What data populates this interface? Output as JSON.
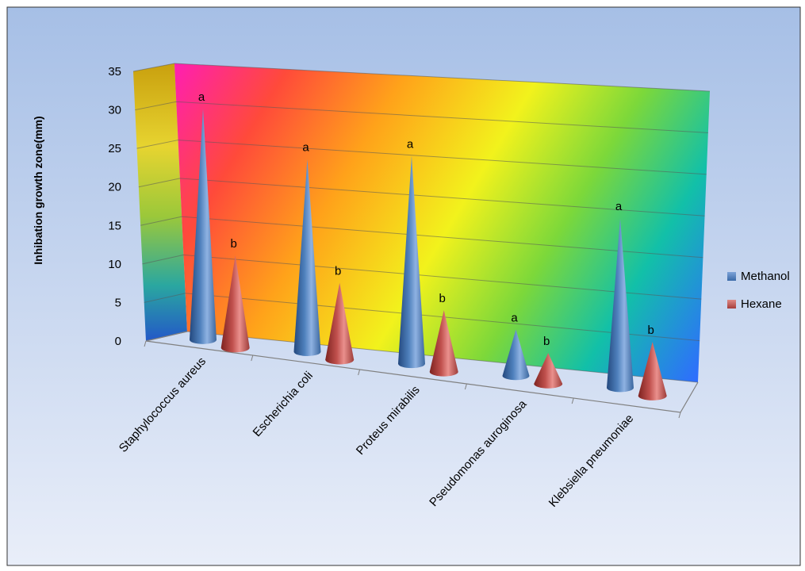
{
  "chart_data": {
    "type": "bar",
    "bar_shape": "3d-cone",
    "ylabel": "Inhibation growth zone(mm)",
    "ylim": [
      0,
      35
    ],
    "y_ticks": [
      0,
      5,
      10,
      15,
      20,
      25,
      30,
      35
    ],
    "grid": true,
    "legend_position": "right",
    "categories": [
      "Staphylococcus aureus",
      "Escherichia coli",
      "Proteus mirabilis",
      "Pseudomonas auroginosa",
      "Klebsiella pneumoniae"
    ],
    "series": [
      {
        "name": "Methanol",
        "color": "#4f81bd",
        "values": [
          30,
          25,
          27,
          6,
          22
        ],
        "labels": [
          "a",
          "a",
          "a",
          "a",
          "a"
        ]
      },
      {
        "name": "Hexane",
        "color": "#c0504d",
        "values": [
          12,
          10,
          8,
          4,
          7
        ],
        "labels": [
          "b",
          "b",
          "b",
          "b",
          "b"
        ]
      }
    ],
    "colors": {
      "frame_top": "#a6bfe6",
      "frame_bottom": "#e9eef9"
    }
  }
}
